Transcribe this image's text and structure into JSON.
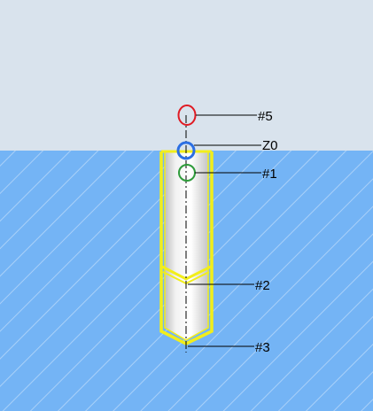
{
  "labels": {
    "p5": "#5",
    "z0": "Z0",
    "p1": "#1",
    "p2": "#2",
    "p3": "#3"
  },
  "colors": {
    "air": "#d9e3ed",
    "material": "#74b4f5",
    "hatch": "#a9d0f8",
    "hole_outline": "#f2ee1a",
    "marker_5": "#e01b24",
    "marker_z0": "#2b6fe3",
    "marker_1": "#2e9b3a",
    "leader": "#000000"
  }
}
